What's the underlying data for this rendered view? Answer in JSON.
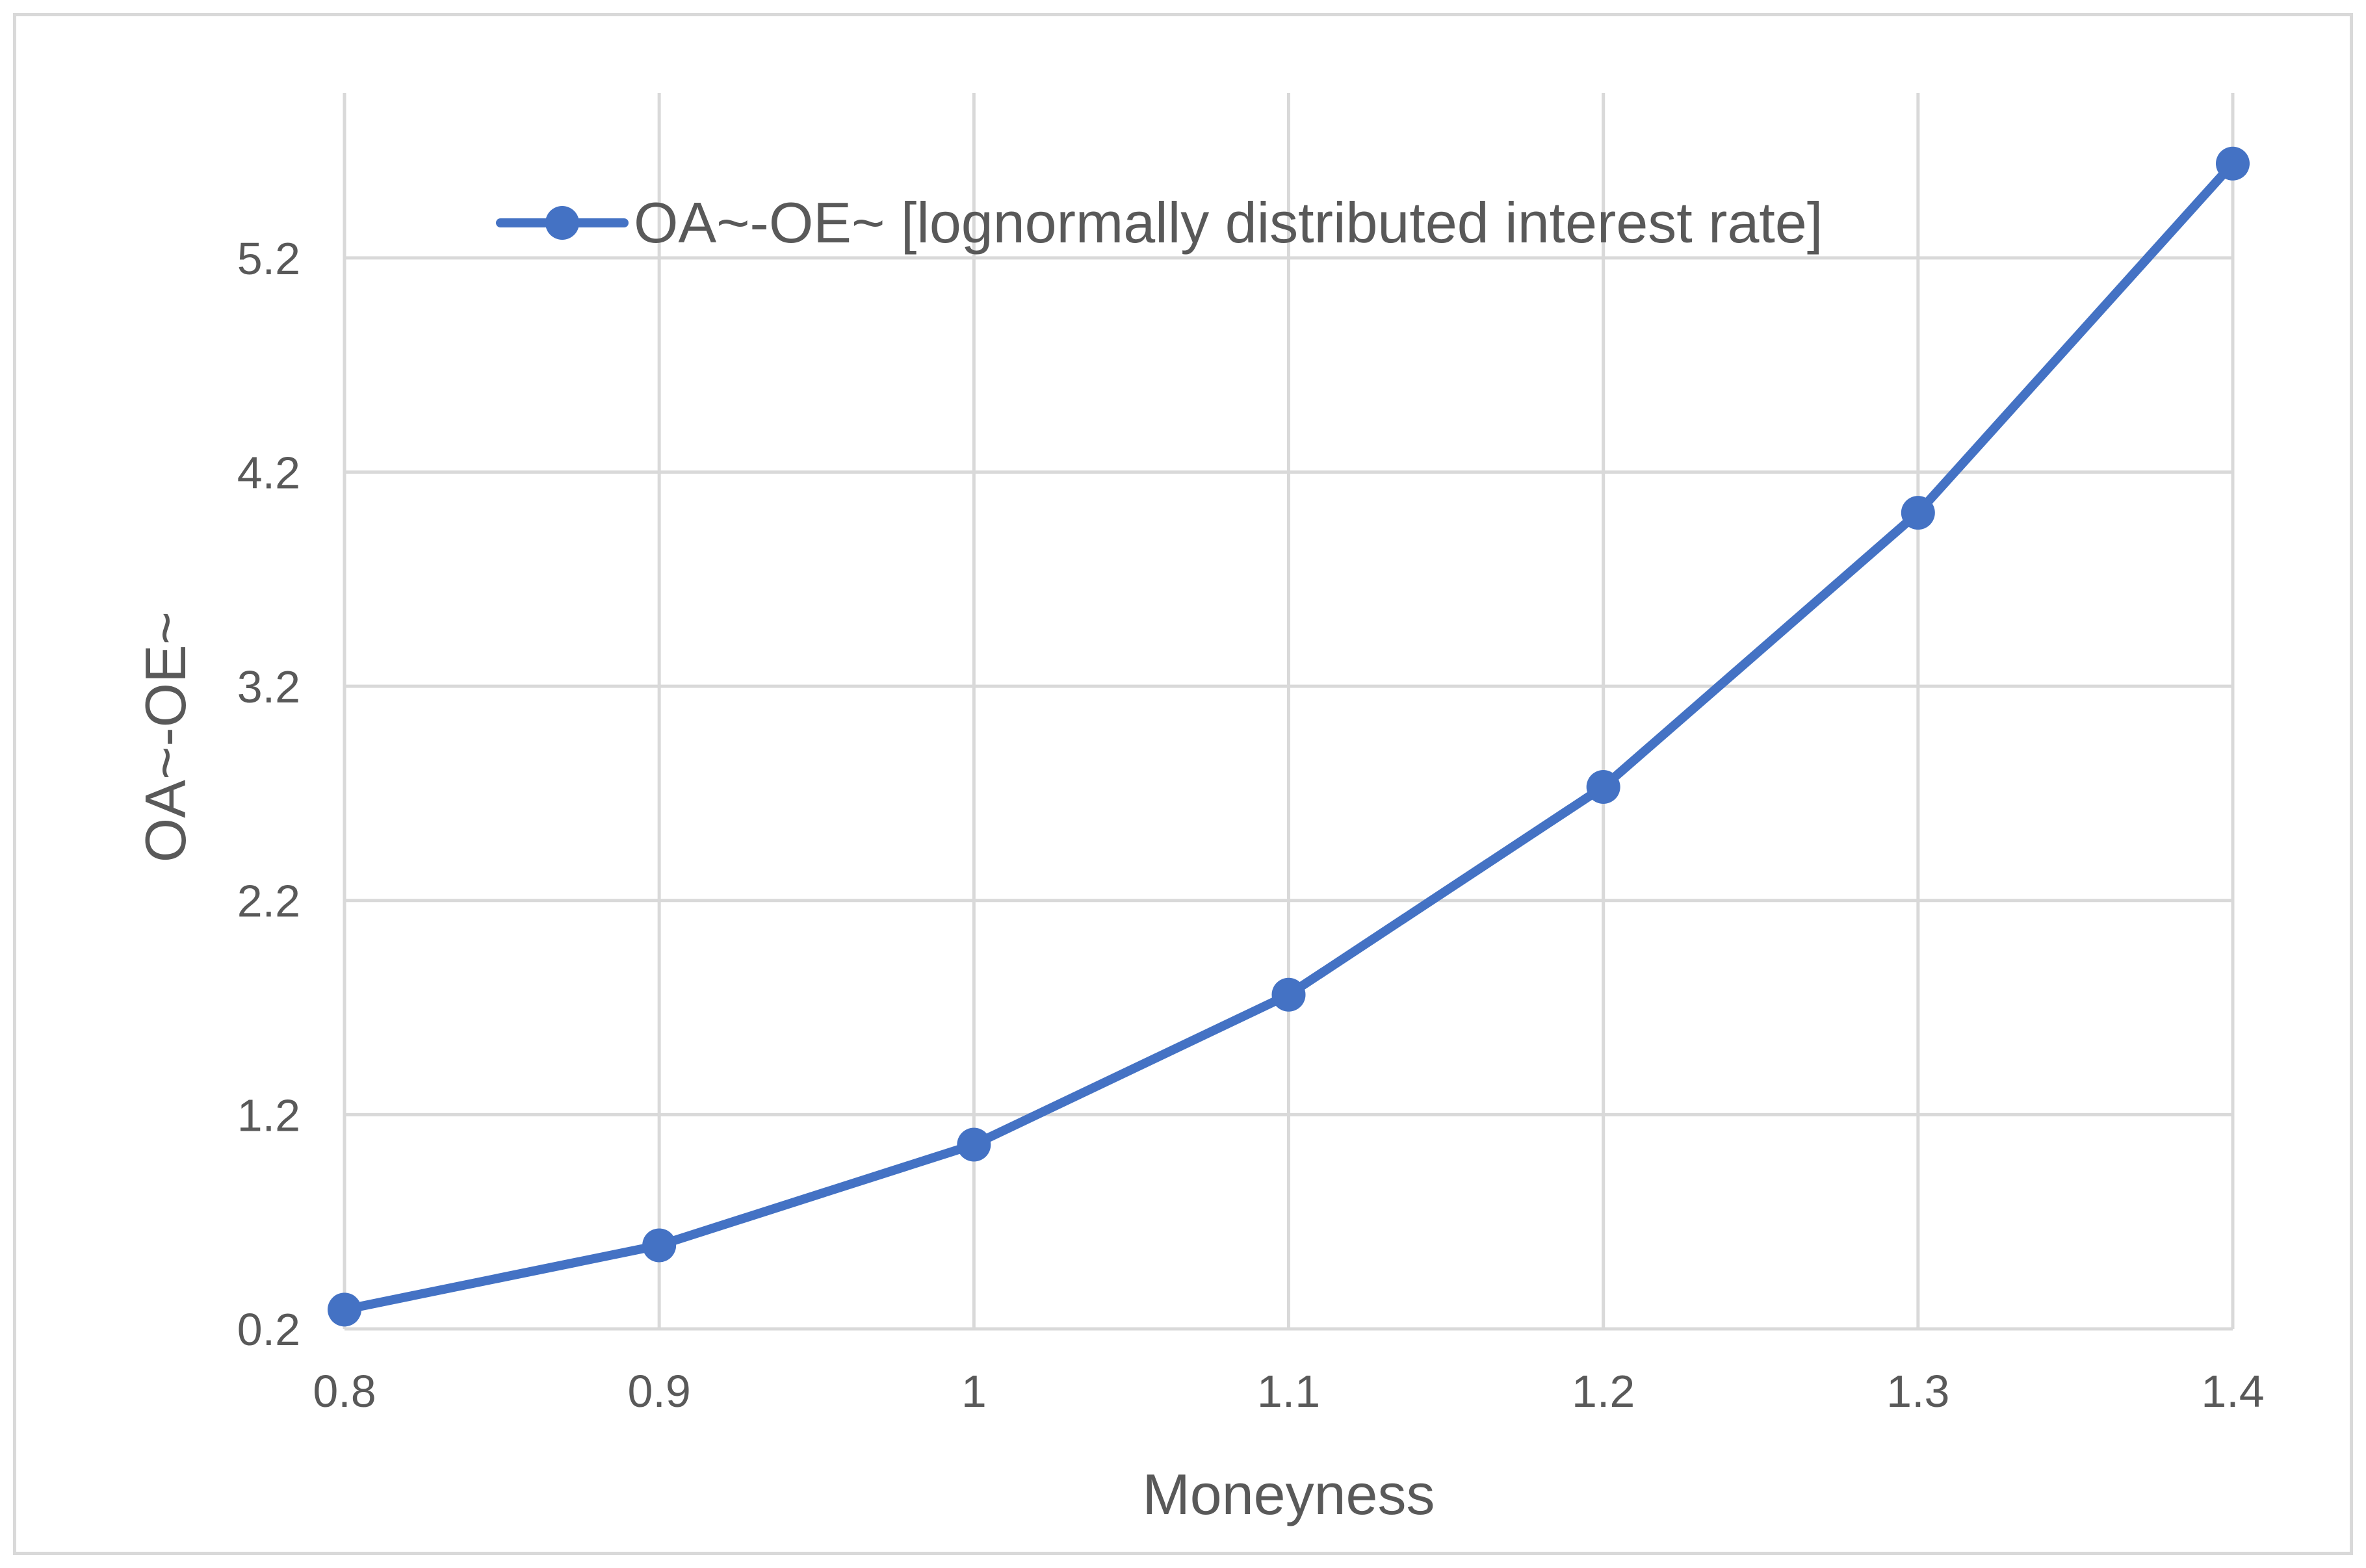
{
  "chart_data": {
    "type": "line",
    "title": "",
    "xlabel": "Moneyness",
    "ylabel": "OA~-OE~",
    "x": [
      0.8,
      0.9,
      1.0,
      1.1,
      1.2,
      1.3,
      1.4
    ],
    "x_tick_labels": [
      "0.8",
      "0.9",
      "1",
      "1.1",
      "1.2",
      "1.3",
      "1.4"
    ],
    "y_tick_values": [
      0.2,
      1.2,
      2.2,
      3.2,
      4.2,
      5.2
    ],
    "y_tick_labels": [
      "0.2",
      "1.2",
      "2.2",
      "3.2",
      "4.2",
      "5.2"
    ],
    "xlim": [
      0.8,
      1.4
    ],
    "ylim": [
      0.2,
      5.97
    ],
    "grid": true,
    "legend_position": "top",
    "series": [
      {
        "name": "OA~-OE~ [lognormally distributed interest rate]",
        "color": "#4472c4",
        "marker": "circle",
        "values": [
          0.29,
          0.59,
          1.06,
          1.76,
          2.73,
          4.01,
          5.64
        ]
      }
    ]
  }
}
